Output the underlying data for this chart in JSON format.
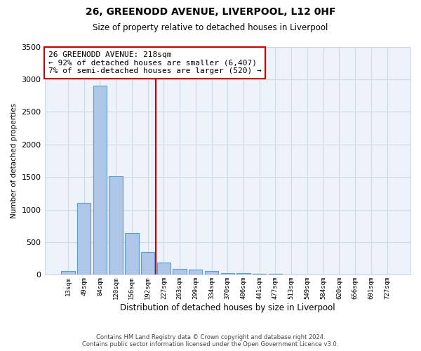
{
  "title_line1": "26, GREENODD AVENUE, LIVERPOOL, L12 0HF",
  "title_line2": "Size of property relative to detached houses in Liverpool",
  "xlabel": "Distribution of detached houses by size in Liverpool",
  "ylabel": "Number of detached properties",
  "categories": [
    "13sqm",
    "49sqm",
    "84sqm",
    "120sqm",
    "156sqm",
    "192sqm",
    "227sqm",
    "263sqm",
    "299sqm",
    "334sqm",
    "370sqm",
    "406sqm",
    "441sqm",
    "477sqm",
    "513sqm",
    "549sqm",
    "584sqm",
    "620sqm",
    "656sqm",
    "691sqm",
    "727sqm"
  ],
  "values": [
    55,
    1100,
    2900,
    1510,
    640,
    345,
    185,
    95,
    75,
    55,
    30,
    25,
    15,
    10,
    5,
    5,
    5,
    3,
    2,
    2,
    1
  ],
  "bar_color": "#aec6e8",
  "bar_edge_color": "#5a9ed4",
  "grid_color": "#d0d8e8",
  "background_color": "#eef2fa",
  "vline_color": "#cc0000",
  "annotation_text": "26 GREENODD AVENUE: 218sqm\n← 92% of detached houses are smaller (6,407)\n7% of semi-detached houses are larger (520) →",
  "annotation_box_color": "#cc0000",
  "annotation_bg": "#ffffff",
  "footer_line1": "Contains HM Land Registry data © Crown copyright and database right 2024.",
  "footer_line2": "Contains public sector information licensed under the Open Government Licence v3.0.",
  "ylim": [
    0,
    3500
  ],
  "yticks": [
    0,
    500,
    1000,
    1500,
    2000,
    2500,
    3000,
    3500
  ],
  "vline_pos": 5.5
}
